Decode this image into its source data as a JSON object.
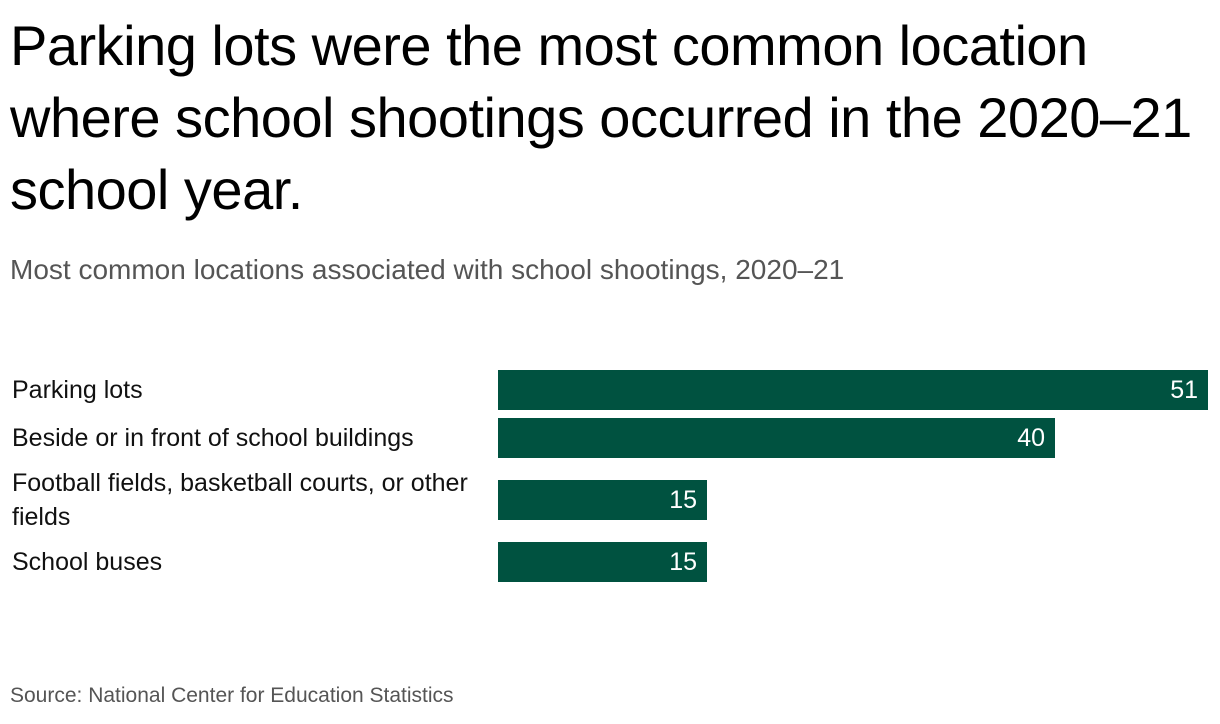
{
  "title": "Parking lots were the most common location where school shootings occurred in the 2020–21 school year.",
  "subtitle": "Most common locations associated with school shootings, 2020–21",
  "source": "Source: National Center for Education Statistics",
  "colors": {
    "bar": "#005240",
    "value_text": "#ffffff"
  },
  "chart_data": {
    "type": "bar",
    "orientation": "horizontal",
    "categories": [
      "Parking lots",
      "Beside or in front of school buildings",
      "Football fields, basketball courts, or other fields",
      "School buses"
    ],
    "values": [
      51,
      40,
      15,
      15
    ],
    "xlim": [
      0,
      51
    ],
    "grid": false,
    "legend": "none"
  }
}
